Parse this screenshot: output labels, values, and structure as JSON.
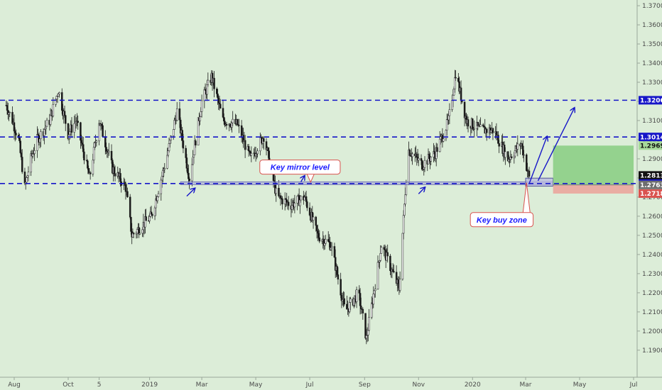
{
  "chart_data": {
    "type": "candlestick",
    "instrument_note": "",
    "ylim": [
      1.1855,
      1.3715
    ],
    "y_ticks": [
      "1.37000",
      "1.36000",
      "1.35000",
      "1.34000",
      "1.33000",
      "1.32000",
      "1.31000",
      "1.30000",
      "1.29000",
      "1.28000",
      "1.27000",
      "1.26000",
      "1.25000",
      "1.24000",
      "1.23000",
      "1.22000",
      "1.21000",
      "1.20000",
      "1.19000"
    ],
    "x_ticks": [
      "Aug",
      "Oct",
      "5",
      "2019",
      "Mar",
      "May",
      "Jul",
      "Sep",
      "Nov",
      "2020",
      "Mar",
      "May",
      "Jul"
    ],
    "x_tick_dates": [
      "2018-08-01",
      "2018-10-01",
      "2018-11-05",
      "2019-01-01",
      "2019-03-01",
      "2019-05-01",
      "2019-07-01",
      "2019-09-01",
      "2019-11-01",
      "2020-01-01",
      "2020-03-01",
      "2020-05-01",
      "2020-07-01"
    ],
    "price_path": [
      {
        "date": "2018-07-23",
        "price": 1.318
      },
      {
        "date": "2018-07-30",
        "price": 1.31
      },
      {
        "date": "2018-08-06",
        "price": 1.3
      },
      {
        "date": "2018-08-13",
        "price": 1.275
      },
      {
        "date": "2018-08-20",
        "price": 1.29
      },
      {
        "date": "2018-08-27",
        "price": 1.3
      },
      {
        "date": "2018-09-10",
        "price": 1.31
      },
      {
        "date": "2018-09-20",
        "price": 1.326
      },
      {
        "date": "2018-10-01",
        "price": 1.303
      },
      {
        "date": "2018-10-10",
        "price": 1.31
      },
      {
        "date": "2018-10-25",
        "price": 1.28
      },
      {
        "date": "2018-11-05",
        "price": 1.31
      },
      {
        "date": "2018-11-20",
        "price": 1.285
      },
      {
        "date": "2018-12-05",
        "price": 1.275
      },
      {
        "date": "2018-12-12",
        "price": 1.25
      },
      {
        "date": "2019-01-03",
        "price": 1.26
      },
      {
        "date": "2019-01-20",
        "price": 1.29
      },
      {
        "date": "2019-02-01",
        "price": 1.315
      },
      {
        "date": "2019-02-15",
        "price": 1.28
      },
      {
        "date": "2019-03-01",
        "price": 1.32
      },
      {
        "date": "2019-03-12",
        "price": 1.333
      },
      {
        "date": "2019-03-25",
        "price": 1.31
      },
      {
        "date": "2019-04-10",
        "price": 1.308
      },
      {
        "date": "2019-04-25",
        "price": 1.29
      },
      {
        "date": "2019-05-10",
        "price": 1.302
      },
      {
        "date": "2019-05-25",
        "price": 1.27
      },
      {
        "date": "2019-06-10",
        "price": 1.266
      },
      {
        "date": "2019-06-25",
        "price": 1.27
      },
      {
        "date": "2019-07-10",
        "price": 1.25
      },
      {
        "date": "2019-07-25",
        "price": 1.245
      },
      {
        "date": "2019-08-10",
        "price": 1.21
      },
      {
        "date": "2019-08-25",
        "price": 1.22
      },
      {
        "date": "2019-09-03",
        "price": 1.196
      },
      {
        "date": "2019-09-20",
        "price": 1.245
      },
      {
        "date": "2019-10-05",
        "price": 1.228
      },
      {
        "date": "2019-10-10",
        "price": 1.222
      },
      {
        "date": "2019-10-20",
        "price": 1.295
      },
      {
        "date": "2019-11-05",
        "price": 1.287
      },
      {
        "date": "2019-11-20",
        "price": 1.293
      },
      {
        "date": "2019-12-05",
        "price": 1.31
      },
      {
        "date": "2019-12-13",
        "price": 1.335
      },
      {
        "date": "2019-12-25",
        "price": 1.31
      },
      {
        "date": "2020-01-10",
        "price": 1.305
      },
      {
        "date": "2020-01-25",
        "price": 1.305
      },
      {
        "date": "2020-02-10",
        "price": 1.29
      },
      {
        "date": "2020-02-25",
        "price": 1.298
      },
      {
        "date": "2020-03-05",
        "price": 1.28
      }
    ],
    "horizontal_lines": [
      {
        "price": 1.3206,
        "label": "1.32060",
        "color": "#1616c8",
        "style": "dashed"
      },
      {
        "price": 1.30141,
        "label": "1.30141",
        "color": "#1616c8",
        "style": "dashed"
      },
      {
        "price": 1.27708,
        "label": "1.27708",
        "color": "#1616c8",
        "style": "dashed"
      }
    ],
    "price_badges": [
      {
        "price": 1.3206,
        "label": "1.32060",
        "bg": "#1616c8",
        "fg": "#ffffff"
      },
      {
        "price": 1.30141,
        "label": "1.30141",
        "bg": "#1616c8",
        "fg": "#ffffff"
      },
      {
        "price": 1.29691,
        "label": "1.29691",
        "bg": "#a7d99a",
        "fg": "#111111"
      },
      {
        "price": 1.28132,
        "label": "1.28132",
        "bg": "#111111",
        "fg": "#ffffff"
      },
      {
        "price": 1.27708,
        "label": "1.27708",
        "bg": "#1616c8",
        "fg": "#ffffff"
      },
      {
        "price": 1.27636,
        "label": "1.27636",
        "bg": "#6e6e6e",
        "fg": "#ffffff"
      },
      {
        "price": 1.27183,
        "label": "1.27183",
        "bg": "#d9534f",
        "fg": "#ffffff"
      }
    ],
    "mirror_zone": {
      "start": "2019-02-05",
      "end": "2020-04-01",
      "price_top": 1.278,
      "price_bottom": 1.2765,
      "color": "#9b9bd6"
    },
    "buy_zone": {
      "start": "2020-03-01",
      "end": "2020-04-01",
      "price_top": 1.2799,
      "price_bottom": 1.2757
    },
    "position": {
      "start": "2020-04-01",
      "end": "2020-07-01",
      "entry": 1.27636,
      "target": 1.29691,
      "stop": 1.27183,
      "profit_color": "#8fd18a",
      "loss_color": "#e9aaa0"
    },
    "arrows": [
      {
        "from": {
          "date": "2019-02-12",
          "price": 1.2705
        },
        "to": {
          "date": "2019-02-21",
          "price": 1.2745
        }
      },
      {
        "from": {
          "date": "2019-06-21",
          "price": 1.278
        },
        "to": {
          "date": "2019-06-25",
          "price": 1.281
        }
      },
      {
        "from": {
          "date": "2019-11-01",
          "price": 1.2717
        },
        "to": {
          "date": "2019-11-08",
          "price": 1.275
        }
      },
      {
        "from": {
          "date": "2020-03-05",
          "price": 1.277
        },
        "to": {
          "date": "2020-03-25",
          "price": 1.3015
        }
      },
      {
        "from": {
          "date": "2020-03-15",
          "price": 1.2785
        },
        "to": {
          "date": "2020-04-25",
          "price": 1.3165
        }
      }
    ],
    "callouts": [
      {
        "text": "Key mirror level",
        "date": "2019-06-20",
        "price": 1.2857,
        "anchor_date": "2019-07-02",
        "anchor_price": 1.2778
      },
      {
        "text": "Key buy zone",
        "date": "2020-02-03",
        "price": 1.2582,
        "anchor_date": "2020-03-02",
        "anchor_price": 1.2775
      }
    ]
  }
}
